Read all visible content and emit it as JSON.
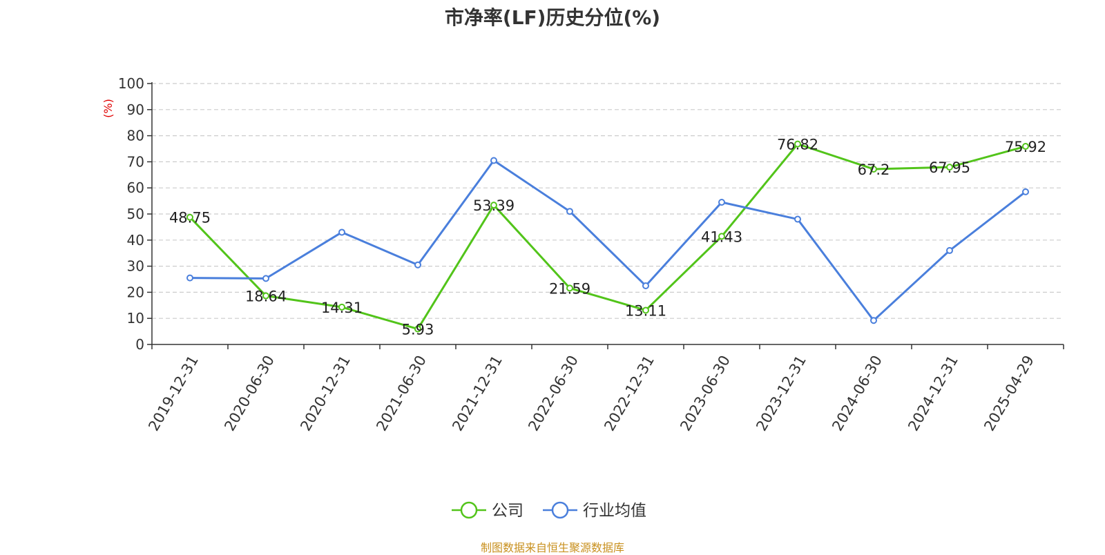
{
  "chart_data": {
    "type": "line",
    "title": "市净率(LF)历史分位(%)",
    "ylabel": "(%)",
    "xlabel": "",
    "categories": [
      "2019-12-31",
      "2020-06-30",
      "2020-12-31",
      "2021-06-30",
      "2021-12-31",
      "2022-06-30",
      "2022-12-31",
      "2023-06-30",
      "2023-12-31",
      "2024-06-30",
      "2024-12-31",
      "2025-04-29"
    ],
    "ylim": [
      0,
      100
    ],
    "yticks": [
      "0",
      "10",
      "20",
      "30",
      "40",
      "50",
      "60",
      "70",
      "80",
      "90",
      "100"
    ],
    "grid": true,
    "legend_position": "bottom",
    "series": [
      {
        "name": "公司",
        "color": "#52c41a",
        "show_labels": true,
        "values": [
          48.75,
          18.64,
          14.31,
          5.93,
          53.39,
          21.59,
          13.11,
          41.43,
          76.82,
          67.2,
          67.95,
          75.92
        ]
      },
      {
        "name": "行业均值",
        "color": "#4a7fdc",
        "show_labels": false,
        "values": [
          25.5,
          25.3,
          43,
          30.5,
          70.5,
          51,
          22.5,
          54.5,
          48,
          9.2,
          36,
          58.5
        ]
      }
    ]
  },
  "source": "制图数据来自恒生聚源数据库"
}
